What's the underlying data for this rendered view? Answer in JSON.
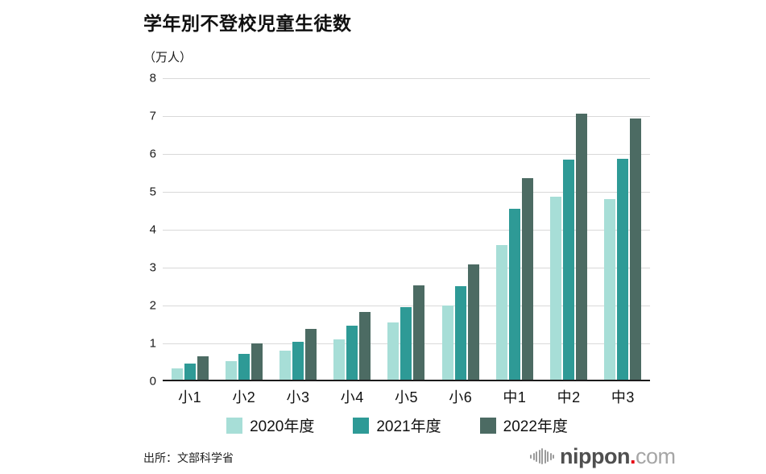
{
  "title": "学年別不登校児童生徒数",
  "unit_label": "（万人）",
  "source": "出所：文部科学省",
  "logo": {
    "icon": "waveform-circle-icon",
    "name": "nippon",
    "dot": ".",
    "tld": "com"
  },
  "chart_data": {
    "type": "bar",
    "title": "学年別不登校児童生徒数",
    "ylabel": "（万人）",
    "xlabel": "",
    "categories": [
      "小1",
      "小2",
      "小3",
      "小4",
      "小5",
      "小6",
      "中1",
      "中2",
      "中3"
    ],
    "series": [
      {
        "name": "2020年度",
        "color": "#a7ded7",
        "values": [
          0.35,
          0.53,
          0.81,
          1.11,
          1.56,
          2.0,
          3.6,
          4.87,
          4.8
        ]
      },
      {
        "name": "2021年度",
        "color": "#2e9a96",
        "values": [
          0.46,
          0.72,
          1.04,
          1.47,
          1.96,
          2.5,
          4.56,
          5.86,
          5.88
        ]
      },
      {
        "name": "2022年度",
        "color": "#4c6b63",
        "values": [
          0.66,
          1.01,
          1.39,
          1.84,
          2.54,
          3.09,
          5.36,
          7.06,
          6.94
        ]
      }
    ],
    "ylim": [
      0,
      8
    ],
    "yticks": [
      0,
      1,
      2,
      3,
      4,
      5,
      6,
      7,
      8
    ],
    "grid": true,
    "legend_position": "bottom",
    "colors": {
      "gridline": "#d9d9d9",
      "baseline": "#1c1c1c",
      "text": "#111111",
      "background": "#ffffff"
    }
  }
}
